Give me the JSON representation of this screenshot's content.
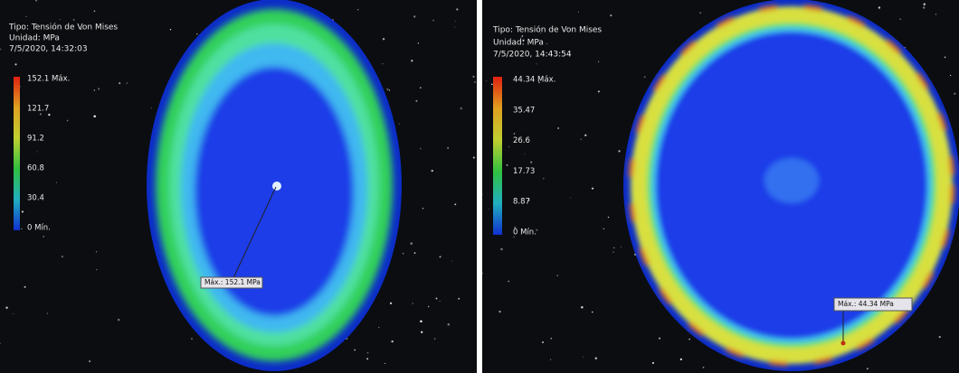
{
  "panels": [
    {
      "type_label": "Tipo: Tensión de Von Mises",
      "unit": "Unidad: MPa",
      "timestamp": "7/5/2020, 14:32:03",
      "legend": [
        "152.1 Máx.",
        "121.7",
        "91.2",
        "60.8",
        "30.4",
        "0 Mín."
      ],
      "max_annotation": "Máx.: 152.1 MPa"
    },
    {
      "type_label": "Tipo: Tensión de Von Mises",
      "unit": "Unidad: MPa",
      "timestamp": "7/5/2020, 14:43:54",
      "legend": [
        "44.34 Máx.",
        "35.47",
        "26.6",
        "17.73",
        "8.87",
        "0 Mín."
      ],
      "max_annotation": "Máx.: 44.34 MPa"
    }
  ]
}
